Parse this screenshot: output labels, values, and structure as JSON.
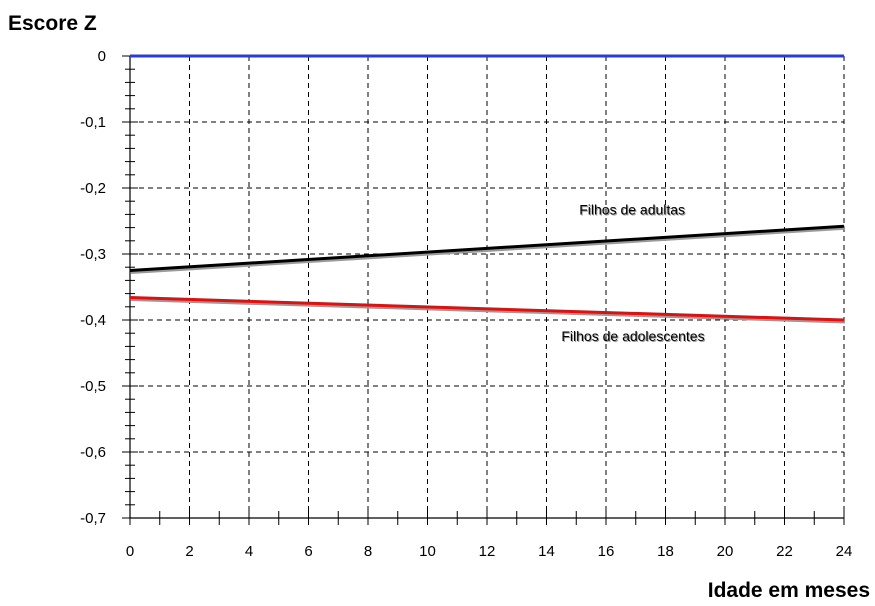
{
  "chart_data": {
    "type": "line",
    "ylabel": "Escore Z",
    "xlabel": "Idade em meses",
    "xlim": [
      0,
      24
    ],
    "ylim": [
      -0.7,
      0
    ],
    "x_ticks": [
      0,
      2,
      4,
      6,
      8,
      10,
      12,
      14,
      16,
      18,
      20,
      22,
      24
    ],
    "y_ticks": [
      0,
      -0.1,
      -0.2,
      -0.3,
      -0.4,
      -0.5,
      -0.6,
      -0.7
    ],
    "y_tick_labels": [
      "0",
      "-0,1",
      "-0,2",
      "-0,3",
      "-0,4",
      "-0,5",
      "-0,6",
      "-0,7"
    ],
    "grid": true,
    "series": [
      {
        "name": "",
        "color": "#2b3bd6",
        "x": [
          0,
          24
        ],
        "y": [
          0,
          0
        ]
      },
      {
        "name": "Filhos de adultas",
        "color": "#000000",
        "x": [
          0,
          24
        ],
        "y": [
          -0.325,
          -0.258
        ]
      },
      {
        "name": "Filhos de adolescentes",
        "color": "#e01010",
        "x": [
          0,
          24
        ],
        "y": [
          -0.366,
          -0.4
        ]
      }
    ],
    "annotations": [
      {
        "text": "Filhos de adultas",
        "x": 15.1,
        "y": -0.24
      },
      {
        "text": "Filhos de adolescentes",
        "x": 14.5,
        "y": -0.432
      }
    ]
  }
}
